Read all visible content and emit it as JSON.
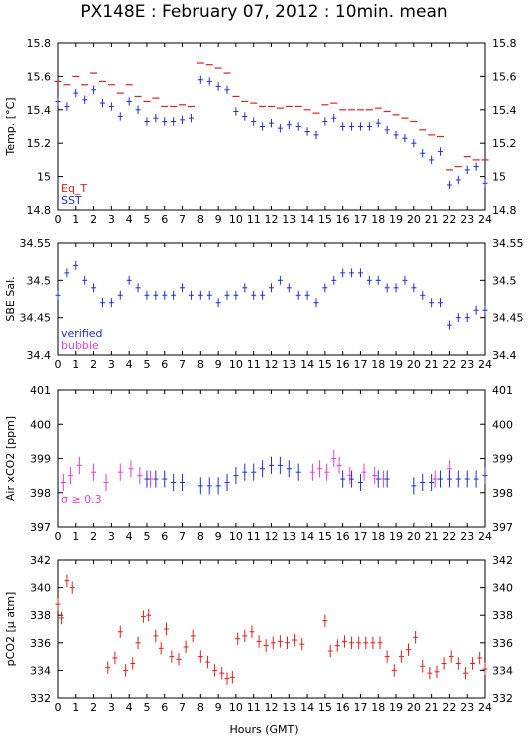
{
  "figure_title": "PX148E : February 07, 2012 : 10min. mean",
  "x_axis_title": "Hours (GMT)",
  "colors": {
    "red": "#e02020",
    "blue": "#1f2fd0",
    "magenta": "#e040e0",
    "axis": "#000000"
  },
  "chart_data": [
    {
      "type": "scatter",
      "ylabel": "Temp. [°C]",
      "ylim": [
        14.8,
        15.8
      ],
      "yticks": [
        "14.8",
        "15",
        "15.2",
        "15.4",
        "15.6",
        "15.8"
      ],
      "xlim": [
        0,
        24
      ],
      "xticks": [
        "0",
        "1",
        "2",
        "3",
        "4",
        "5",
        "6",
        "7",
        "8",
        "9",
        "10",
        "11",
        "12",
        "13",
        "14",
        "15",
        "16",
        "17",
        "18",
        "19",
        "20",
        "21",
        "22",
        "23",
        "24"
      ],
      "legend": [
        {
          "text": "Eq_T",
          "color": "#e02020"
        },
        {
          "text": "SST",
          "color": "#1f2fd0"
        }
      ],
      "series": [
        {
          "name": "Eq_T",
          "color": "#e02020",
          "errbar": false,
          "x": [
            0,
            0.5,
            1,
            1.5,
            2,
            2.5,
            3,
            3.5,
            4,
            4.5,
            5,
            5.5,
            6,
            6.5,
            7,
            7.5,
            8,
            8.5,
            9,
            9.5,
            10,
            10.5,
            11,
            11.5,
            12,
            12.5,
            13,
            13.5,
            14,
            14.5,
            15,
            15.5,
            16,
            16.5,
            17,
            17.5,
            18,
            18.5,
            19,
            19.5,
            20,
            20.5,
            21,
            21.5,
            22,
            22.5,
            23,
            23.5,
            24
          ],
          "y": [
            15.57,
            15.55,
            15.6,
            15.55,
            15.62,
            15.57,
            15.55,
            15.5,
            15.55,
            15.48,
            15.45,
            15.47,
            15.42,
            15.42,
            15.43,
            15.42,
            15.68,
            15.67,
            15.65,
            15.62,
            15.48,
            15.45,
            15.44,
            15.42,
            15.42,
            15.41,
            15.42,
            15.42,
            15.4,
            15.38,
            15.43,
            15.44,
            15.4,
            15.4,
            15.4,
            15.4,
            15.41,
            15.39,
            15.37,
            15.35,
            15.33,
            15.28,
            15.25,
            15.24,
            15.04,
            15.06,
            15.12,
            15.1,
            15.1
          ]
        },
        {
          "name": "SST",
          "color": "#1f2fd0",
          "errbar": true,
          "x": [
            0,
            0.5,
            1,
            1.5,
            2,
            2.5,
            3,
            3.5,
            4,
            4.5,
            5,
            5.5,
            6,
            6.5,
            7,
            7.5,
            8,
            8.5,
            9,
            9.5,
            10,
            10.5,
            11,
            11.5,
            12,
            12.5,
            13,
            13.5,
            14,
            14.5,
            15,
            15.5,
            16,
            16.5,
            17,
            17.5,
            18,
            18.5,
            19,
            19.5,
            20,
            20.5,
            21,
            21.5,
            22,
            22.5,
            23,
            23.5,
            24
          ],
          "y": [
            15.45,
            15.42,
            15.5,
            15.46,
            15.52,
            15.44,
            15.42,
            15.36,
            15.45,
            15.4,
            15.33,
            15.35,
            15.33,
            15.33,
            15.34,
            15.35,
            15.58,
            15.57,
            15.54,
            15.52,
            15.39,
            15.36,
            15.33,
            15.3,
            15.32,
            15.29,
            15.31,
            15.3,
            15.27,
            15.25,
            15.33,
            15.35,
            15.3,
            15.3,
            15.3,
            15.3,
            15.32,
            15.28,
            15.25,
            15.23,
            15.2,
            15.14,
            15.1,
            15.15,
            14.95,
            14.98,
            15.04,
            15.06,
            14.96
          ]
        }
      ]
    },
    {
      "type": "scatter",
      "ylabel": "SBE Sal.",
      "ylim": [
        34.4,
        34.55
      ],
      "yticks": [
        "34.4",
        "34.45",
        "34.5",
        "34.55"
      ],
      "xlim": [
        0,
        24
      ],
      "xticks": [
        "0",
        "1",
        "2",
        "3",
        "4",
        "5",
        "6",
        "7",
        "8",
        "9",
        "10",
        "11",
        "12",
        "13",
        "14",
        "15",
        "16",
        "17",
        "18",
        "19",
        "20",
        "21",
        "22",
        "23",
        "24"
      ],
      "legend": [
        {
          "text": "verified",
          "color": "#1f2fd0"
        },
        {
          "text": "bubble",
          "color": "#e040e0"
        }
      ],
      "series": [
        {
          "name": "verified",
          "color": "#1f2fd0",
          "errbar": true,
          "x": [
            0,
            0.5,
            1,
            1.5,
            2,
            2.5,
            3,
            3.5,
            4,
            4.5,
            5,
            5.5,
            6,
            6.5,
            7,
            7.5,
            8,
            8.5,
            9,
            9.5,
            10,
            10.5,
            11,
            11.5,
            12,
            12.5,
            13,
            13.5,
            14,
            14.5,
            15,
            15.5,
            16,
            16.5,
            17,
            17.5,
            18,
            18.5,
            19,
            19.5,
            20,
            20.5,
            21,
            21.5,
            22,
            22.5,
            23,
            23.5,
            24
          ],
          "y": [
            34.48,
            34.51,
            34.52,
            34.5,
            34.49,
            34.47,
            34.47,
            34.48,
            34.5,
            34.49,
            34.48,
            34.48,
            34.48,
            34.48,
            34.49,
            34.48,
            34.48,
            34.48,
            34.47,
            34.48,
            34.48,
            34.49,
            34.48,
            34.48,
            34.49,
            34.5,
            34.49,
            34.48,
            34.48,
            34.47,
            34.49,
            34.5,
            34.51,
            34.51,
            34.51,
            34.5,
            34.5,
            34.49,
            34.49,
            34.5,
            34.49,
            34.48,
            34.47,
            34.47,
            34.44,
            34.45,
            34.45,
            34.46,
            34.46
          ]
        }
      ]
    },
    {
      "type": "scatter",
      "ylabel": "Air xCO2 [ppm]",
      "ylim": [
        397,
        401
      ],
      "yticks": [
        "397",
        "398",
        "399",
        "400",
        "401"
      ],
      "xlim": [
        0,
        24
      ],
      "xticks": [
        "0",
        "1",
        "2",
        "3",
        "4",
        "5",
        "6",
        "7",
        "8",
        "9",
        "10",
        "11",
        "12",
        "13",
        "14",
        "15",
        "16",
        "17",
        "18",
        "19",
        "20",
        "21",
        "22",
        "23",
        "24"
      ],
      "annotation": "σ ≥ 0.3",
      "series": [
        {
          "name": "",
          "color": "#e040e0",
          "errbar": true,
          "x": [
            0.3,
            0.7,
            1.2,
            2,
            2.7,
            3.5,
            4.1,
            4.6,
            5.2,
            14.3,
            14.7,
            15.1,
            15.5,
            15.8,
            16.4,
            17.2,
            17.8,
            18.3,
            21.2,
            22
          ],
          "y": [
            398.3,
            398.5,
            398.8,
            398.6,
            398.3,
            398.6,
            398.7,
            398.5,
            398.4,
            398.6,
            398.7,
            398.6,
            399.0,
            398.8,
            398.5,
            398.6,
            398.5,
            398.4,
            398.4,
            398.7
          ]
        },
        {
          "name": "",
          "color": "#1f2fd0",
          "errbar": true,
          "x": [
            5,
            5.5,
            6,
            6.5,
            7,
            8,
            8.5,
            9,
            9.5,
            10,
            10.5,
            11,
            11.5,
            12,
            12.5,
            13,
            13.5,
            16,
            16.5,
            17,
            18,
            18.5,
            20,
            20.5,
            21,
            21.5,
            22,
            22.5,
            23,
            23.5,
            24
          ],
          "y": [
            398.4,
            398.4,
            398.4,
            398.3,
            398.3,
            398.2,
            398.2,
            398.2,
            398.3,
            398.5,
            398.6,
            398.6,
            398.7,
            398.8,
            398.8,
            398.7,
            398.6,
            398.4,
            398.4,
            398.3,
            398.4,
            398.4,
            398.2,
            398.3,
            398.3,
            398.4,
            398.4,
            398.4,
            398.4,
            398.4,
            398.5
          ]
        }
      ]
    },
    {
      "type": "scatter",
      "ylabel": "pCO2 [μ atm]",
      "ylim": [
        332,
        342
      ],
      "yticks": [
        "332",
        "334",
        "336",
        "338",
        "340",
        "342"
      ],
      "xlim": [
        0,
        24
      ],
      "xticks": [
        "0",
        "1",
        "2",
        "3",
        "4",
        "5",
        "6",
        "7",
        "8",
        "9",
        "10",
        "11",
        "12",
        "13",
        "14",
        "15",
        "16",
        "17",
        "18",
        "19",
        "20",
        "21",
        "22",
        "23",
        "24"
      ],
      "series": [
        {
          "name": "",
          "color": "#e02020",
          "errbar": true,
          "x": [
            0,
            0.2,
            0.5,
            0.8,
            2.8,
            3.2,
            3.5,
            3.8,
            4.2,
            4.5,
            4.8,
            5.1,
            5.5,
            5.8,
            6.1,
            6.4,
            6.8,
            7.2,
            7.6,
            8,
            8.4,
            8.8,
            9.2,
            9.5,
            9.8,
            10.1,
            10.5,
            10.9,
            11.3,
            11.7,
            12.1,
            12.5,
            12.9,
            13.3,
            13.7,
            15,
            15.3,
            15.7,
            16.1,
            16.5,
            16.9,
            17.3,
            17.7,
            18.1,
            18.5,
            18.9,
            19.3,
            19.7,
            20.1,
            20.5,
            20.9,
            21.3,
            21.7,
            22.1,
            22.5,
            22.9,
            23.3,
            23.7,
            24
          ],
          "y": [
            338.8,
            337.8,
            340.5,
            340.0,
            334.2,
            334.9,
            336.8,
            334.0,
            334.5,
            336.0,
            337.9,
            338.0,
            336.5,
            335.6,
            337.0,
            335.0,
            334.8,
            335.7,
            336.5,
            335.0,
            334.6,
            334.0,
            333.8,
            333.4,
            333.5,
            336.3,
            336.5,
            336.8,
            336.1,
            335.8,
            336.0,
            336.1,
            336.0,
            336.2,
            335.9,
            337.6,
            335.4,
            335.8,
            336.1,
            336.0,
            336.0,
            336.0,
            336.0,
            336.0,
            335.0,
            334.0,
            335.0,
            335.5,
            336.4,
            334.3,
            333.8,
            333.9,
            334.5,
            335.0,
            334.5,
            333.8,
            334.5,
            334.9,
            334.1
          ]
        }
      ]
    }
  ]
}
